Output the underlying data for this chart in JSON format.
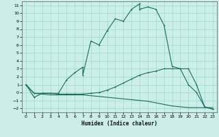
{
  "title": "",
  "xlabel": "Humidex (Indice chaleur)",
  "bg_color": "#cceee8",
  "grid_color": "#99d9d0",
  "line_color": "#1a6b5e",
  "xlim": [
    -0.5,
    23.5
  ],
  "ylim": [
    -2.5,
    11.5
  ],
  "xticks": [
    0,
    1,
    2,
    3,
    4,
    5,
    6,
    7,
    8,
    9,
    10,
    11,
    12,
    13,
    14,
    15,
    16,
    17,
    18,
    19,
    20,
    21,
    22,
    23
  ],
  "yticks": [
    -2,
    -1,
    0,
    1,
    2,
    3,
    4,
    5,
    6,
    7,
    8,
    9,
    10,
    11
  ],
  "series1_x": [
    0,
    1,
    2,
    3,
    4,
    5,
    6,
    7,
    7,
    8,
    9,
    10,
    11,
    12,
    13,
    14,
    14,
    15,
    16,
    17,
    18,
    19,
    20,
    21,
    22,
    23
  ],
  "series1_y": [
    1,
    -0.6,
    -0.1,
    -0.1,
    -0.1,
    1.6,
    2.5,
    3.2,
    2.2,
    6.5,
    6.0,
    7.8,
    9.3,
    9.0,
    10.5,
    11.2,
    10.5,
    10.8,
    10.5,
    8.5,
    3.3,
    3.0,
    1.0,
    0.0,
    -1.8,
    -2.1
  ],
  "series2_x": [
    0,
    1,
    2,
    3,
    4,
    5,
    6,
    7,
    8,
    9,
    10,
    11,
    12,
    13,
    14,
    15,
    16,
    17,
    18,
    19,
    20,
    21,
    22,
    23
  ],
  "series2_y": [
    1,
    -0.1,
    -0.1,
    -0.1,
    -0.2,
    -0.2,
    -0.2,
    -0.2,
    -0.1,
    0.0,
    0.3,
    0.7,
    1.2,
    1.7,
    2.2,
    2.5,
    2.7,
    3.0,
    3.0,
    3.0,
    3.0,
    1.0,
    -1.8,
    -2.1
  ],
  "series3_x": [
    0,
    1,
    2,
    3,
    4,
    5,
    6,
    7,
    8,
    9,
    10,
    11,
    12,
    13,
    14,
    15,
    16,
    17,
    18,
    19,
    20,
    21,
    22,
    23
  ],
  "series3_y": [
    1,
    -0.1,
    -0.2,
    -0.3,
    -0.3,
    -0.3,
    -0.3,
    -0.3,
    -0.4,
    -0.5,
    -0.6,
    -0.7,
    -0.8,
    -0.9,
    -1.0,
    -1.1,
    -1.3,
    -1.5,
    -1.7,
    -1.8,
    -1.9,
    -1.9,
    -1.9,
    -1.9
  ]
}
